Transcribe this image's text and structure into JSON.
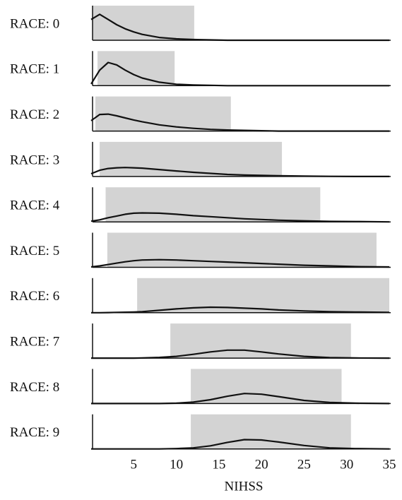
{
  "chart_data": {
    "type": "ridgeline",
    "xlabel": "NIHSS",
    "xlim": [
      0,
      35
    ],
    "xticks": [
      5,
      10,
      15,
      20,
      25,
      30,
      35
    ],
    "ylim": [
      0,
      1
    ],
    "range_color": "#d3d3d3",
    "line_color": "#111111",
    "x": [
      0,
      1,
      2,
      3,
      4,
      5,
      6,
      8,
      10,
      12,
      14,
      16,
      18,
      20,
      22,
      25,
      28,
      31,
      35
    ],
    "series": [
      {
        "name": "RACE: 0",
        "range": [
          0,
          12.1
        ],
        "values": [
          0.6,
          0.75,
          0.6,
          0.45,
          0.33,
          0.24,
          0.17,
          0.08,
          0.04,
          0.02,
          0.01,
          0,
          0,
          0,
          0,
          0,
          0,
          0,
          0
        ]
      },
      {
        "name": "RACE: 1",
        "range": [
          0.75,
          9.8
        ],
        "values": [
          0.05,
          0.45,
          0.67,
          0.6,
          0.45,
          0.32,
          0.22,
          0.1,
          0.04,
          0.02,
          0.01,
          0,
          0,
          0,
          0,
          0,
          0,
          0,
          0
        ]
      },
      {
        "name": "RACE: 2",
        "range": [
          0.5,
          16.4
        ],
        "values": [
          0.3,
          0.48,
          0.49,
          0.44,
          0.38,
          0.32,
          0.27,
          0.18,
          0.12,
          0.08,
          0.05,
          0.03,
          0.02,
          0.01,
          0,
          0,
          0,
          0,
          0
        ]
      },
      {
        "name": "RACE: 3",
        "range": [
          1,
          22.4
        ],
        "values": [
          0.08,
          0.18,
          0.23,
          0.25,
          0.26,
          0.25,
          0.24,
          0.2,
          0.16,
          0.12,
          0.09,
          0.06,
          0.04,
          0.03,
          0.02,
          0.01,
          0.005,
          0,
          0
        ]
      },
      {
        "name": "RACE: 4",
        "range": [
          1.7,
          26.9
        ],
        "values": [
          0.02,
          0.06,
          0.12,
          0.17,
          0.22,
          0.25,
          0.26,
          0.25,
          0.22,
          0.18,
          0.15,
          0.12,
          0.09,
          0.07,
          0.05,
          0.03,
          0.015,
          0.01,
          0
        ]
      },
      {
        "name": "RACE: 5",
        "range": [
          1.9,
          33.5
        ],
        "values": [
          0.01,
          0.04,
          0.08,
          0.12,
          0.16,
          0.19,
          0.21,
          0.22,
          0.21,
          0.19,
          0.17,
          0.15,
          0.13,
          0.11,
          0.09,
          0.06,
          0.04,
          0.02,
          0.01
        ]
      },
      {
        "name": "RACE: 6",
        "range": [
          5.4,
          35
        ],
        "values": [
          0,
          0,
          0.005,
          0.01,
          0.015,
          0.02,
          0.03,
          0.07,
          0.11,
          0.14,
          0.16,
          0.15,
          0.13,
          0.11,
          0.08,
          0.05,
          0.03,
          0.02,
          0.01
        ]
      },
      {
        "name": "RACE: 7",
        "range": [
          9.3,
          30.5
        ],
        "values": [
          0,
          0,
          0,
          0,
          0,
          0,
          0.005,
          0.02,
          0.05,
          0.11,
          0.18,
          0.23,
          0.23,
          0.18,
          0.12,
          0.05,
          0.015,
          0.005,
          0
        ]
      },
      {
        "name": "RACE: 8",
        "range": [
          11.7,
          29.4
        ],
        "values": [
          0,
          0,
          0,
          0,
          0,
          0,
          0,
          0,
          0.01,
          0.04,
          0.11,
          0.21,
          0.29,
          0.27,
          0.2,
          0.09,
          0.03,
          0.01,
          0
        ]
      },
      {
        "name": "RACE: 9",
        "range": [
          11.7,
          30.5
        ],
        "values": [
          0,
          0,
          0,
          0,
          0,
          0,
          0,
          0,
          0.01,
          0.03,
          0.09,
          0.19,
          0.27,
          0.26,
          0.2,
          0.1,
          0.03,
          0.01,
          0
        ]
      }
    ]
  }
}
